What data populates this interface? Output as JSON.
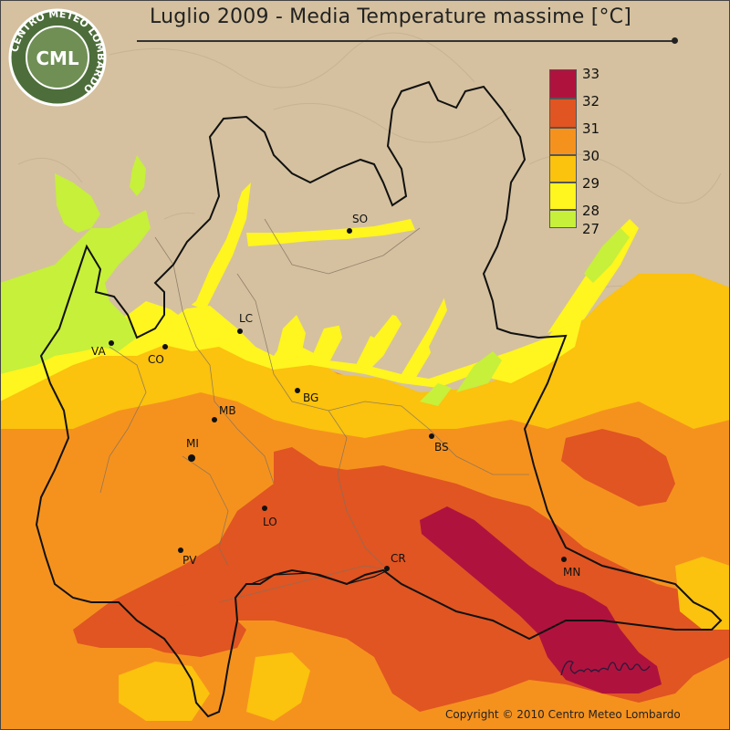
{
  "title": "Luglio 2009 - Media Temperature massime [°C]",
  "logo": {
    "text": "CML",
    "ring_text": "CENTRO METEO LOMBARDO",
    "icon": "globe-logo-icon"
  },
  "legend": {
    "labels": [
      "33",
      "32",
      "31",
      "30",
      "29",
      "28",
      "27"
    ],
    "colors": [
      "#b0123e",
      "#e05522",
      "#f5921e",
      "#fbc20e",
      "#fff51f",
      "#c6f03a"
    ]
  },
  "cities": [
    {
      "code": "SO",
      "name_id": "city-sondrio"
    },
    {
      "code": "LC",
      "name_id": "city-lecco"
    },
    {
      "code": "VA",
      "name_id": "city-varese"
    },
    {
      "code": "CO",
      "name_id": "city-como"
    },
    {
      "code": "BG",
      "name_id": "city-bergamo"
    },
    {
      "code": "MB",
      "name_id": "city-monza"
    },
    {
      "code": "MI",
      "name_id": "city-milano"
    },
    {
      "code": "BS",
      "name_id": "city-brescia"
    },
    {
      "code": "LO",
      "name_id": "city-lodi"
    },
    {
      "code": "PV",
      "name_id": "city-pavia"
    },
    {
      "code": "CR",
      "name_id": "city-cremona"
    },
    {
      "code": "MN",
      "name_id": "city-mantova"
    }
  ],
  "signature": "Bruno Biffi",
  "copyright": "Copyright © 2010 Centro Meteo Lombardo",
  "colors": {
    "background": "#d8c4a4",
    "mountains": "#d2bd9c",
    "t27": "#c6f03a",
    "t28": "#fff51f",
    "t29": "#fbc20e",
    "t30": "#f5921e",
    "t31": "#e05522",
    "t32": "#b0123e"
  }
}
